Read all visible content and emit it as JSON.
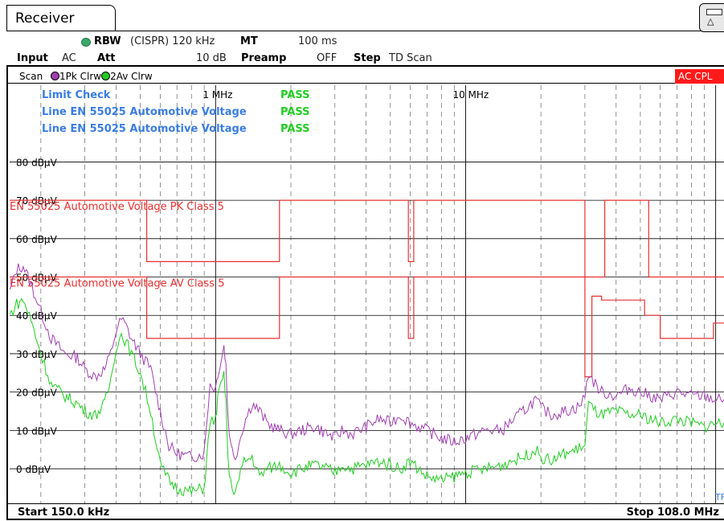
{
  "window": {
    "tab_title": "Receiver"
  },
  "settings": {
    "rbw_label": "RBW",
    "rbw_value": "(CISPR) 120 kHz",
    "mt_label": "MT",
    "mt_value": "100 ms",
    "input_label": "Input",
    "input_value": "AC",
    "att_label": "Att",
    "att_value": "10 dB",
    "preamp_label": "Preamp",
    "preamp_value": "OFF",
    "step_label": "Step",
    "step_value": "TD Scan"
  },
  "scan_bar": {
    "scan_label": "Scan",
    "trace1": "1Pk Clrw",
    "trace2": "2Av Clrw",
    "status": "AC CPL"
  },
  "footer": {
    "start": "Start 150.0 kHz",
    "stop": "Stop 108.0 MHz"
  },
  "colors": {
    "trace1": "#a040b0",
    "trace2": "#22cc22",
    "limit": "#e83030",
    "limit_text": "#3a7de0",
    "pass": "#22cc22",
    "grid": "#000000",
    "alert": "#ff1a1a"
  },
  "chart_data": {
    "type": "line",
    "x_scale": "log",
    "xlim_mhz": [
      0.15,
      108.0
    ],
    "ylim_dbuv": [
      -9,
      100
    ],
    "y_ticks": [
      {
        "value": 80,
        "label": "80 dBµV"
      },
      {
        "value": 70,
        "label": "70 dBµV"
      },
      {
        "value": 60,
        "label": "60 dBµV"
      },
      {
        "value": 50,
        "label": "50 dBµV"
      },
      {
        "value": 40,
        "label": "40 dBµV"
      },
      {
        "value": 30,
        "label": "30 dBµV"
      },
      {
        "value": 20,
        "label": "20 dBµV"
      },
      {
        "value": 10,
        "label": "10 dBµV"
      },
      {
        "value": 0,
        "label": "0 dBµV"
      }
    ],
    "x_ticks": [
      {
        "value": 1,
        "label": "1 MHz"
      },
      {
        "value": 10,
        "label": "10 MHz"
      }
    ],
    "grid": true,
    "limit_check": {
      "header": "Limit Check",
      "header_status": "PASS",
      "lines": [
        {
          "name": "Line EN 55025 Automotive Voltage",
          "status": "PASS"
        },
        {
          "name": "Line EN 55025 Automotive Voltage",
          "status": "PASS"
        }
      ]
    },
    "limit_lines": [
      {
        "name": "EN 55025 Automotive Voltage PK Class 5",
        "label_at": 70,
        "points": [
          [
            0.15,
            70
          ],
          [
            0.53,
            70
          ],
          [
            0.53,
            54
          ],
          [
            1.8,
            54
          ],
          [
            1.8,
            70
          ],
          [
            5.9,
            70
          ],
          [
            5.9,
            54
          ],
          [
            6.2,
            54
          ],
          [
            6.2,
            70
          ],
          [
            30,
            70
          ],
          [
            30,
            50
          ],
          [
            36,
            50
          ],
          [
            36,
            70
          ],
          [
            54,
            70
          ],
          [
            54,
            50
          ],
          [
            108,
            50
          ]
        ]
      },
      {
        "name": "EN 55025 Automotive Voltage AV Class 5",
        "label_at": 50,
        "points": [
          [
            0.15,
            50
          ],
          [
            0.53,
            50
          ],
          [
            0.53,
            34
          ],
          [
            1.8,
            34
          ],
          [
            1.8,
            50
          ],
          [
            5.9,
            50
          ],
          [
            5.9,
            34
          ],
          [
            6.2,
            34
          ],
          [
            6.2,
            50
          ],
          [
            30,
            50
          ],
          [
            30,
            24
          ],
          [
            32,
            24
          ],
          [
            32,
            45
          ],
          [
            35,
            45
          ],
          [
            35,
            44
          ],
          [
            52,
            44
          ],
          [
            52,
            40
          ],
          [
            60,
            40
          ],
          [
            60,
            34
          ],
          [
            98,
            34
          ],
          [
            98,
            38
          ],
          [
            108,
            38
          ]
        ]
      }
    ],
    "series": [
      {
        "name": "1Pk Clrw",
        "trace": 1,
        "points": [
          [
            0.15,
            46
          ],
          [
            0.16,
            52
          ],
          [
            0.17,
            53
          ],
          [
            0.18,
            49
          ],
          [
            0.19,
            45
          ],
          [
            0.2,
            41
          ],
          [
            0.22,
            34
          ],
          [
            0.25,
            30
          ],
          [
            0.28,
            29
          ],
          [
            0.3,
            26
          ],
          [
            0.33,
            24
          ],
          [
            0.36,
            26
          ],
          [
            0.38,
            30
          ],
          [
            0.4,
            36
          ],
          [
            0.42,
            39
          ],
          [
            0.44,
            37
          ],
          [
            0.46,
            34
          ],
          [
            0.5,
            30
          ],
          [
            0.55,
            26
          ],
          [
            0.6,
            15
          ],
          [
            0.65,
            6
          ],
          [
            0.7,
            4
          ],
          [
            0.8,
            3
          ],
          [
            0.9,
            4
          ],
          [
            0.92,
            12
          ],
          [
            0.95,
            22
          ],
          [
            1.0,
            21
          ],
          [
            1.02,
            25
          ],
          [
            1.05,
            28
          ],
          [
            1.08,
            32
          ],
          [
            1.1,
            27
          ],
          [
            1.12,
            14
          ],
          [
            1.15,
            6
          ],
          [
            1.2,
            3
          ],
          [
            1.3,
            12
          ],
          [
            1.4,
            17
          ],
          [
            1.5,
            15
          ],
          [
            1.6,
            12
          ],
          [
            1.8,
            10
          ],
          [
            2.0,
            9
          ],
          [
            2.2,
            10
          ],
          [
            2.5,
            11
          ],
          [
            2.8,
            9
          ],
          [
            3.0,
            8
          ],
          [
            3.2,
            10
          ],
          [
            3.5,
            9
          ],
          [
            4.0,
            11
          ],
          [
            4.5,
            13
          ],
          [
            5.0,
            12
          ],
          [
            5.5,
            14
          ],
          [
            6.0,
            12
          ],
          [
            7.0,
            10
          ],
          [
            8.0,
            8
          ],
          [
            9.0,
            7
          ],
          [
            10,
            8
          ],
          [
            12,
            10
          ],
          [
            14,
            10
          ],
          [
            15,
            12
          ],
          [
            17,
            15
          ],
          [
            19,
            18
          ],
          [
            20,
            16
          ],
          [
            22,
            14
          ],
          [
            25,
            15
          ],
          [
            28,
            16
          ],
          [
            29,
            17
          ],
          [
            30,
            19
          ],
          [
            31,
            25
          ],
          [
            33,
            22
          ],
          [
            35,
            20
          ],
          [
            40,
            19
          ],
          [
            45,
            21
          ],
          [
            50,
            20
          ],
          [
            55,
            19
          ],
          [
            60,
            18
          ],
          [
            70,
            20
          ],
          [
            80,
            19
          ],
          [
            90,
            19
          ],
          [
            100,
            18
          ],
          [
            108,
            18
          ]
        ]
      },
      {
        "name": "2Av Clrw",
        "trace": 2,
        "points": [
          [
            0.15,
            40
          ],
          [
            0.16,
            43
          ],
          [
            0.17,
            44
          ],
          [
            0.18,
            40
          ],
          [
            0.19,
            35
          ],
          [
            0.2,
            30
          ],
          [
            0.22,
            22
          ],
          [
            0.25,
            19
          ],
          [
            0.28,
            17
          ],
          [
            0.3,
            15
          ],
          [
            0.33,
            14
          ],
          [
            0.36,
            17
          ],
          [
            0.38,
            23
          ],
          [
            0.4,
            32
          ],
          [
            0.42,
            35
          ],
          [
            0.44,
            33
          ],
          [
            0.46,
            30
          ],
          [
            0.5,
            25
          ],
          [
            0.55,
            15
          ],
          [
            0.6,
            1
          ],
          [
            0.65,
            -3
          ],
          [
            0.7,
            -5
          ],
          [
            0.8,
            -6
          ],
          [
            0.9,
            -5
          ],
          [
            0.92,
            2
          ],
          [
            0.95,
            12
          ],
          [
            1.0,
            13
          ],
          [
            1.02,
            18
          ],
          [
            1.05,
            22
          ],
          [
            1.08,
            24
          ],
          [
            1.1,
            18
          ],
          [
            1.12,
            2
          ],
          [
            1.15,
            -4
          ],
          [
            1.2,
            -6
          ],
          [
            1.3,
            2
          ],
          [
            1.4,
            3
          ],
          [
            1.5,
            -2
          ],
          [
            1.6,
            0
          ],
          [
            1.8,
            1
          ],
          [
            2.0,
            -1
          ],
          [
            2.2,
            0
          ],
          [
            2.5,
            1
          ],
          [
            2.8,
            0
          ],
          [
            3.0,
            -1
          ],
          [
            3.2,
            1
          ],
          [
            3.5,
            0
          ],
          [
            4.0,
            1
          ],
          [
            4.5,
            2
          ],
          [
            5.0,
            1
          ],
          [
            5.5,
            0
          ],
          [
            6.0,
            2
          ],
          [
            7.0,
            -2
          ],
          [
            8.0,
            -3
          ],
          [
            9.0,
            -2
          ],
          [
            10,
            -1
          ],
          [
            12,
            0
          ],
          [
            14,
            1
          ],
          [
            15,
            2
          ],
          [
            17,
            3
          ],
          [
            19,
            5
          ],
          [
            20,
            3
          ],
          [
            22,
            2
          ],
          [
            25,
            4
          ],
          [
            28,
            5
          ],
          [
            29,
            6
          ],
          [
            30,
            6
          ],
          [
            31,
            17
          ],
          [
            33,
            15
          ],
          [
            35,
            14
          ],
          [
            40,
            15
          ],
          [
            45,
            14
          ],
          [
            50,
            14
          ],
          [
            55,
            13
          ],
          [
            60,
            12
          ],
          [
            70,
            13
          ],
          [
            80,
            12
          ],
          [
            90,
            11
          ],
          [
            100,
            12
          ],
          [
            108,
            12
          ]
        ]
      }
    ],
    "marker_label": "TF"
  }
}
